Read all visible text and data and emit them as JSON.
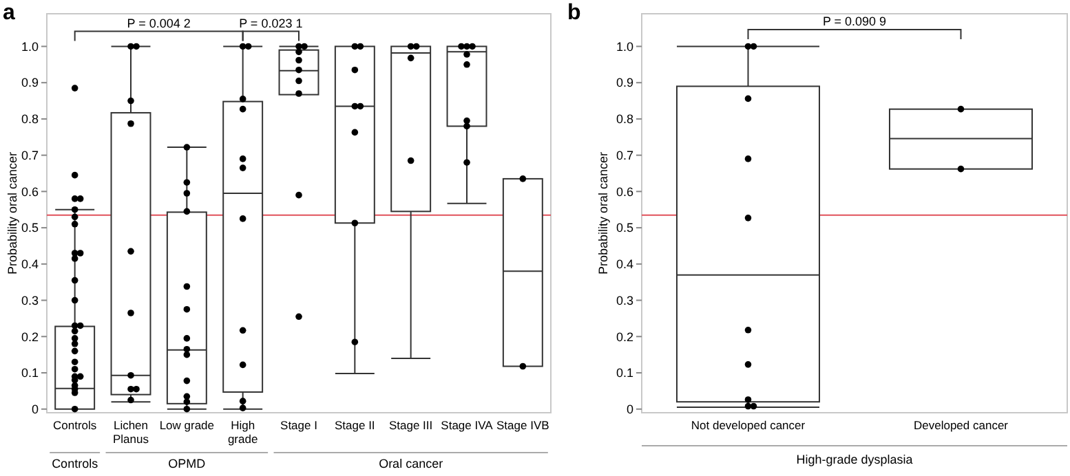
{
  "chart_data": [
    {
      "type": "box",
      "title": "a",
      "ylabel": "Probability oral cancer",
      "categories": [
        "Controls",
        "Lichen\nPlanus",
        "Low grade",
        "High\ngrade",
        "Stage I",
        "Stage II",
        "Stage III",
        "Stage IVA",
        "Stage IVB"
      ],
      "ylim": [
        -0.01,
        1.09
      ],
      "yticks": [
        0,
        0.1,
        0.2,
        0.3,
        0.4,
        0.5,
        0.6,
        0.7,
        0.8,
        0.9,
        {
          "value": 1,
          "label": "1.0"
        }
      ],
      "grid": false,
      "series": [
        {
          "type": "box",
          "color": "#333333",
          "boxes": [
            {
              "low": 0,
              "q1": 0,
              "median": 0.057,
              "q3": 0.228,
              "high": 0.55
            },
            {
              "low": 0.02,
              "q1": 0.04,
              "median": 0.093,
              "q3": 0.817,
              "high": 1.0
            },
            {
              "low": 0,
              "q1": 0.015,
              "median": 0.163,
              "q3": 0.543,
              "high": 0.722
            },
            {
              "low": 0,
              "q1": 0.047,
              "median": 0.595,
              "q3": 0.848,
              "high": 1.0
            },
            {
              "low": 0.867,
              "q1": 0.867,
              "median": 0.933,
              "q3": 0.99,
              "high": 1.0
            },
            {
              "low": 0.098,
              "q1": 0.513,
              "median": 0.835,
              "q3": 1.0,
              "high": 1.0
            },
            {
              "low": 0.14,
              "q1": 0.545,
              "median": 0.982,
              "q3": 1.0,
              "high": 1.0
            },
            {
              "low": 0.567,
              "q1": 0.78,
              "median": 0.985,
              "q3": 1.0,
              "high": 1.0
            },
            {
              "low": 0.118,
              "q1": 0.118,
              "median": 0.38,
              "q3": 0.635,
              "high": 0.635
            }
          ]
        },
        {
          "type": "scatter",
          "color": "#000000",
          "marker": "circle",
          "x": [
            "Controls",
            "Controls",
            "Controls",
            "Controls",
            "Controls",
            "Controls",
            "Controls",
            "Controls",
            "Controls",
            "Controls",
            "Controls",
            "Controls",
            "Controls",
            "Controls",
            "Controls",
            "Controls",
            "Controls",
            "Controls",
            "Controls",
            "Controls",
            "Controls",
            "Controls",
            "Controls",
            "Controls",
            "Controls",
            "Controls",
            "Controls",
            "Lichen\nPlanus",
            "Lichen\nPlanus",
            "Lichen\nPlanus",
            "Lichen\nPlanus",
            "Lichen\nPlanus",
            "Lichen\nPlanus",
            "Lichen\nPlanus",
            "Lichen\nPlanus",
            "Lichen\nPlanus",
            "Lichen\nPlanus",
            "Low grade",
            "Low grade",
            "Low grade",
            "Low grade",
            "Low grade",
            "Low grade",
            "Low grade",
            "Low grade",
            "Low grade",
            "Low grade",
            "Low grade",
            "Low grade",
            "Low grade",
            "High\ngrade",
            "High\ngrade",
            "High\ngrade",
            "High\ngrade",
            "High\ngrade",
            "High\ngrade",
            "High\ngrade",
            "High\ngrade",
            "High\ngrade",
            "High\ngrade",
            "High\ngrade",
            "Stage I",
            "Stage I",
            "Stage I",
            "Stage I",
            "Stage I",
            "Stage I",
            "Stage I",
            "Stage I",
            "Stage I",
            "Stage II",
            "Stage II",
            "Stage II",
            "Stage II",
            "Stage II",
            "Stage II",
            "Stage II",
            "Stage II",
            "Stage III",
            "Stage III",
            "Stage III",
            "Stage III",
            "Stage IVA",
            "Stage IVA",
            "Stage IVA",
            "Stage IVA",
            "Stage IVA",
            "Stage IVA",
            "Stage IVA",
            "Stage IVA",
            "Stage IVB",
            "Stage IVB"
          ],
          "values": [
            0.885,
            0.645,
            0.58,
            0.58,
            0.55,
            0.53,
            0.51,
            0.43,
            0.43,
            0.415,
            0.355,
            0.3,
            0.23,
            0.23,
            0.215,
            0.195,
            0.18,
            0.16,
            0.13,
            0.11,
            0.09,
            0.09,
            0.08,
            0.065,
            0.055,
            0.045,
            0,
            1.0,
            1.0,
            0.85,
            0.787,
            0.435,
            0.265,
            0.093,
            0.055,
            0.055,
            0.025,
            0.722,
            0.625,
            0.595,
            0.545,
            0.338,
            0.275,
            0.195,
            0.165,
            0.15,
            0.078,
            0.035,
            0.02,
            0,
            1.0,
            1.0,
            0.855,
            0.827,
            0.69,
            0.665,
            0.525,
            0.217,
            0.122,
            0.022,
            0.003,
            1.0,
            1.0,
            0.985,
            0.962,
            0.935,
            0.905,
            0.87,
            0.59,
            0.255,
            1.0,
            1.0,
            0.935,
            0.835,
            0.835,
            0.763,
            0.513,
            0.185,
            1.0,
            1.0,
            0.968,
            0.685,
            1.0,
            1.0,
            1.0,
            0.978,
            0.95,
            0.795,
            0.78,
            0.68,
            0.635,
            0.118
          ]
        }
      ],
      "ref_lines": [
        {
          "axis": "y",
          "value": 0.535,
          "color": "#e0505a"
        }
      ],
      "annotations": [
        "P = 0.004 2",
        "P = 0.023 1",
        "Controls",
        "OPMD",
        "Oral cancer"
      ]
    },
    {
      "type": "box",
      "title": "b",
      "ylabel": "Probability oral cancer",
      "xlabel": "High-grade dysplasia",
      "categories": [
        "Not developed cancer",
        "Developed cancer"
      ],
      "ylim": [
        -0.01,
        1.09
      ],
      "yticks": [
        0,
        0.1,
        0.2,
        0.3,
        0.4,
        0.5,
        0.6,
        0.7,
        0.8,
        0.9,
        {
          "value": 1,
          "label": "1.0"
        }
      ],
      "grid": false,
      "series": [
        {
          "type": "box",
          "color": "#333333",
          "boxes": [
            {
              "low": 0.005,
              "q1": 0.02,
              "median": 0.37,
              "q3": 0.89,
              "high": 1.0
            },
            {
              "low": 0.662,
              "q1": 0.662,
              "median": 0.746,
              "q3": 0.827,
              "high": 0.827
            }
          ]
        },
        {
          "type": "scatter",
          "color": "#000000",
          "marker": "circle",
          "x": [
            "Not developed cancer",
            "Not developed cancer",
            "Not developed cancer",
            "Not developed cancer",
            "Not developed cancer",
            "Not developed cancer",
            "Not developed cancer",
            "Not developed cancer",
            "Not developed cancer",
            "Not developed cancer",
            "Developed cancer",
            "Developed cancer"
          ],
          "values": [
            1.0,
            1.0,
            0.856,
            0.69,
            0.527,
            0.218,
            0.123,
            0.026,
            0.008,
            0.008,
            0.827,
            0.662
          ]
        }
      ],
      "ref_lines": [
        {
          "axis": "y",
          "value": 0.535,
          "color": "#e0505a"
        }
      ],
      "annotations": [
        "P = 0.090 9"
      ]
    }
  ]
}
